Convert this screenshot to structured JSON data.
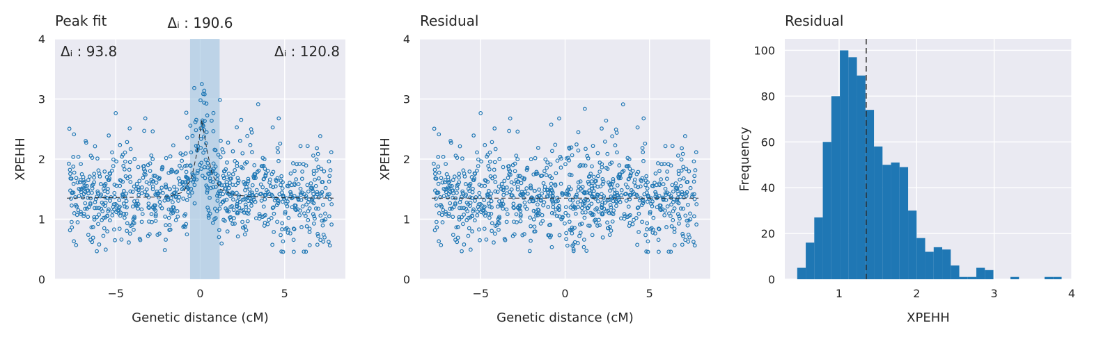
{
  "colors": {
    "axes_bg": "#eaeaf2",
    "grid": "#ffffff",
    "point": "#1f77b4",
    "bar": "#1f77b4",
    "peak_span": "#9ec3e0",
    "dash": "#262626"
  },
  "chart_data": [
    {
      "type": "scatter",
      "title": "Peak fit",
      "xlabel": "Genetic distance (cM)",
      "ylabel": "XPEHH",
      "xlim": [
        -8.6,
        8.6
      ],
      "ylim": [
        0,
        4
      ],
      "xticks": [
        -5,
        0,
        5
      ],
      "xtick_labels": [
        "−5",
        "0",
        "5"
      ],
      "yticks": [
        0,
        1,
        2,
        3,
        4
      ],
      "ytick_labels": [
        "0",
        "1",
        "2",
        "3",
        "4"
      ],
      "n_points": 900,
      "x_range": [
        -7.8,
        7.8
      ],
      "baseline": 1.35,
      "peak_center": 0.1,
      "peak_height": 1.25,
      "peak_window": [
        -0.6,
        1.15
      ],
      "fit_curve": [
        [
          -7.9,
          1.35
        ],
        [
          -2,
          1.37
        ],
        [
          -1,
          1.45
        ],
        [
          -0.5,
          1.7
        ],
        [
          -0.2,
          2.1
        ],
        [
          0.1,
          2.65
        ],
        [
          0.4,
          2.15
        ],
        [
          0.7,
          1.75
        ],
        [
          1.2,
          1.5
        ],
        [
          2,
          1.4
        ],
        [
          4,
          1.36
        ],
        [
          7.9,
          1.35
        ]
      ],
      "annotations": {
        "left": "Δᵢ : 93.8",
        "center": "Δᵢ : 190.6",
        "right": "Δᵢ : 120.8"
      }
    },
    {
      "type": "scatter",
      "title": "Residual",
      "xlabel": "Genetic distance (cM)",
      "ylabel": "XPEHH",
      "xlim": [
        -8.6,
        8.6
      ],
      "ylim": [
        0,
        4
      ],
      "xticks": [
        -5,
        0,
        5
      ],
      "xtick_labels": [
        "−5",
        "0",
        "5"
      ],
      "yticks": [
        0,
        1,
        2,
        3,
        4
      ],
      "ytick_labels": [
        "0",
        "1",
        "2",
        "3",
        "4"
      ],
      "n_points": 900,
      "x_range": [
        -7.8,
        7.8
      ],
      "baseline": 1.35
    },
    {
      "type": "bar",
      "title": "Residual",
      "xlabel": "XPEHH",
      "ylabel": "Frequency",
      "xlim": [
        0.3,
        4.0
      ],
      "ylim": [
        0,
        105
      ],
      "xticks": [
        1,
        2,
        3,
        4
      ],
      "xtick_labels": [
        "1",
        "2",
        "3",
        "4"
      ],
      "yticks": [
        0,
        20,
        40,
        60,
        80,
        100
      ],
      "ytick_labels": [
        "0",
        "20",
        "40",
        "60",
        "80",
        "100"
      ],
      "bin_edges": [
        0.46,
        0.57,
        0.68,
        0.79,
        0.9,
        1.01,
        1.12,
        1.23,
        1.34,
        1.45,
        1.56,
        1.67,
        1.78,
        1.89,
        2.0,
        2.11,
        2.22,
        2.33,
        2.44,
        2.55,
        2.66,
        2.77,
        2.88,
        2.99,
        3.1,
        3.21,
        3.32,
        3.43,
        3.54,
        3.65,
        3.76,
        3.87
      ],
      "counts": [
        5,
        16,
        27,
        60,
        80,
        100,
        97,
        89,
        74,
        58,
        50,
        51,
        49,
        30,
        18,
        12,
        14,
        13,
        6,
        1,
        1,
        5,
        4,
        0,
        0,
        1,
        0,
        0,
        0,
        1,
        1
      ],
      "mean_line": 1.35
    }
  ]
}
